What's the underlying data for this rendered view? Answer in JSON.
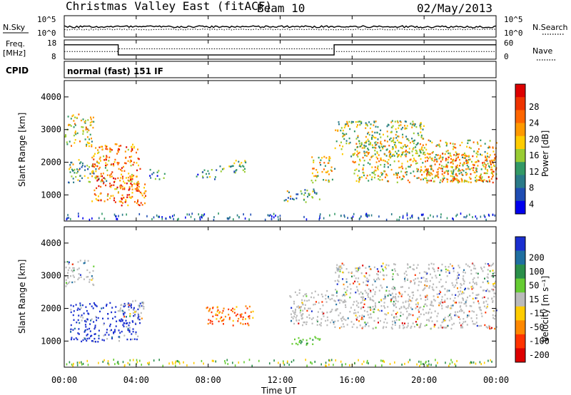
{
  "header": {
    "title": "Christmas Valley East (fitACF)",
    "beam": "Beam 10",
    "date": "02/May/2013"
  },
  "sky_panel": {
    "left_label": "N.Sky",
    "left_ticks": [
      "10^5",
      "10^0"
    ],
    "right_ticks": [
      "10^5",
      "10^0"
    ],
    "right_label": "N.Search"
  },
  "freq_panel": {
    "left_label_line1": "Freq.",
    "left_label_line2": "[MHz]",
    "left_ticks": [
      "18",
      "8"
    ],
    "right_ticks": [
      "60",
      "0"
    ],
    "right_label": "Nave"
  },
  "cpid_panel": {
    "label": "CPID",
    "mode": "normal (fast) 151 IF"
  },
  "x_axis": {
    "label": "Time UT",
    "ticks": [
      "00:00",
      "04:00",
      "08:00",
      "12:00",
      "16:00",
      "20:00",
      "00:00"
    ]
  },
  "chart_data": [
    {
      "type": "heatmap",
      "name": "power-panel",
      "ylabel": "Slant Range [km]",
      "xlabel": "",
      "ylim": [
        200,
        4500
      ],
      "y_ticks": [
        "4000",
        "3000",
        "2000",
        "1000"
      ],
      "x_hours_range": [
        0,
        24
      ],
      "colorbar": {
        "label": "Power [dB]",
        "ticks": [
          "28",
          "24",
          "20",
          "16",
          "12",
          "8",
          "4"
        ],
        "colors": [
          "#dd0000",
          "#ee3300",
          "#ff6600",
          "#ff9900",
          "#ffcc00",
          "#99cc33",
          "#339966",
          "#2a7a88",
          "#1f4db3",
          "#0000ee"
        ]
      },
      "regions": [
        {
          "t0": 0.0,
          "t1": 1.6,
          "r0": 2500,
          "r1": 3500,
          "level": 0.55
        },
        {
          "t0": 0.2,
          "t1": 2.5,
          "r0": 1400,
          "r1": 2100,
          "level": 0.45
        },
        {
          "t0": 1.5,
          "t1": 4.2,
          "r0": 800,
          "r1": 2600,
          "level": 0.8
        },
        {
          "t0": 3.0,
          "t1": 4.5,
          "r0": 700,
          "r1": 1400,
          "level": 0.85
        },
        {
          "t0": 4.7,
          "t1": 5.6,
          "r0": 1500,
          "r1": 1800,
          "level": 0.3
        },
        {
          "t0": 7.3,
          "t1": 8.5,
          "r0": 1500,
          "r1": 1800,
          "level": 0.35
        },
        {
          "t0": 8.6,
          "t1": 10.2,
          "r0": 1700,
          "r1": 2100,
          "level": 0.4
        },
        {
          "t0": 12.2,
          "t1": 14.2,
          "r0": 800,
          "r1": 1200,
          "level": 0.4
        },
        {
          "t0": 13.7,
          "t1": 15.0,
          "r0": 1400,
          "r1": 2200,
          "level": 0.6
        },
        {
          "t0": 15.0,
          "t1": 20.0,
          "r0": 2200,
          "r1": 3300,
          "level": 0.5
        },
        {
          "t0": 16.0,
          "t1": 24.0,
          "r0": 1400,
          "r1": 2700,
          "level": 0.6
        },
        {
          "t0": 20.0,
          "t1": 24.0,
          "r0": 1400,
          "r1": 2300,
          "level": 0.75
        }
      ]
    },
    {
      "type": "heatmap",
      "name": "velocity-panel",
      "ylabel": "Slant Range [km]",
      "xlabel": "Time UT",
      "ylim": [
        200,
        4500
      ],
      "y_ticks": [
        "4000",
        "3000",
        "2000",
        "1000"
      ],
      "x_hours_range": [
        0,
        24
      ],
      "colorbar": {
        "label": "Velocity [m s⁻¹]",
        "ticks": [
          "200",
          "100",
          "50",
          "15",
          "-15",
          "-50",
          "-100",
          "-200"
        ],
        "colors": [
          "#1a2fd0",
          "#1f6fa0",
          "#2a8f4a",
          "#66cc33",
          "#bbbbbb",
          "#ffcc00",
          "#ff8800",
          "#ff3300",
          "#dd0000"
        ]
      },
      "regions": [
        {
          "t0": 0.0,
          "t1": 1.6,
          "r0": 2700,
          "r1": 3500,
          "kind": "ground"
        },
        {
          "t0": 0.3,
          "t1": 4.2,
          "r0": 1000,
          "r1": 2200,
          "kind": "blue"
        },
        {
          "t0": 3.0,
          "t1": 4.4,
          "r0": 1700,
          "r1": 2300,
          "kind": "ground"
        },
        {
          "t0": 7.8,
          "t1": 10.5,
          "r0": 1500,
          "r1": 2100,
          "kind": "orange"
        },
        {
          "t0": 12.5,
          "t1": 14.2,
          "r0": 900,
          "r1": 1200,
          "kind": "green"
        },
        {
          "t0": 12.5,
          "t1": 15.0,
          "r0": 1500,
          "r1": 2600,
          "kind": "ground"
        },
        {
          "t0": 15.0,
          "t1": 24.0,
          "r0": 1400,
          "r1": 3400,
          "kind": "ground"
        }
      ]
    },
    {
      "type": "line",
      "name": "freq-trace",
      "x_hours": [
        0,
        3.0,
        3.0,
        15.0,
        15.0,
        24
      ],
      "freq_mhz": [
        16.5,
        16.5,
        9.0,
        9.0,
        16.5,
        16.5
      ],
      "nave": [
        21,
        21,
        33,
        33,
        21,
        21
      ]
    }
  ]
}
